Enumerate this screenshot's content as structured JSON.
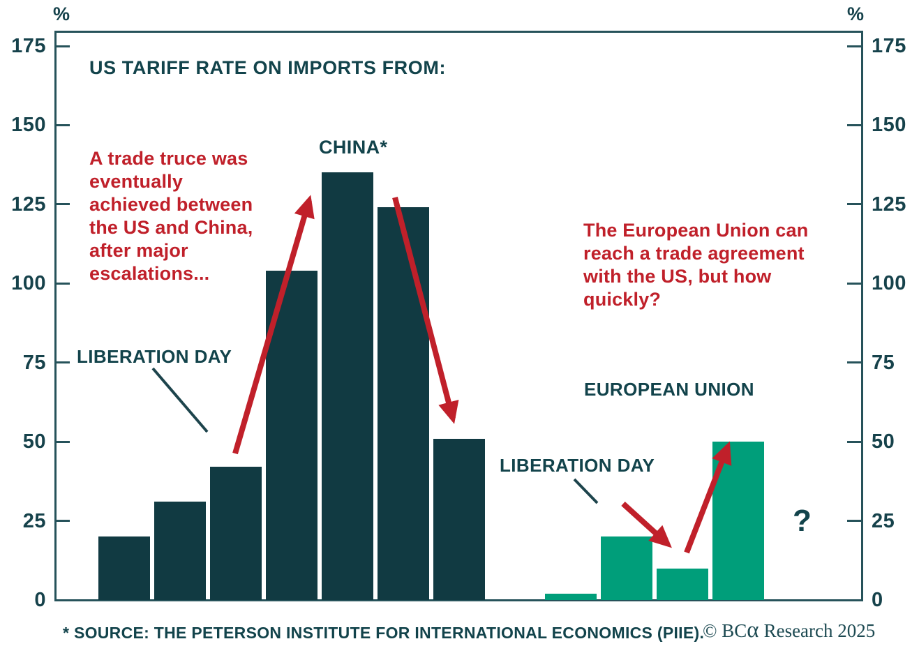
{
  "title": "US TARIFF RATE ON IMPORTS FROM:",
  "axis": {
    "unit_left": "%",
    "unit_right": "%"
  },
  "chart_data": {
    "type": "bar",
    "title": "US TARIFF RATE ON IMPORTS FROM:",
    "xlabel": "",
    "ylabel": "%",
    "ylim": [
      0,
      175
    ],
    "yticks": [
      0,
      25,
      50,
      75,
      100,
      125,
      150,
      175
    ],
    "grid": false,
    "legend_position": "none",
    "groups": [
      {
        "name": "CHINA*",
        "color": "#113a42",
        "values": [
          20,
          31,
          42,
          104,
          135,
          124,
          51
        ]
      },
      {
        "name": "EUROPEAN UNION",
        "color": "#009e7a",
        "values": [
          2,
          20,
          10,
          50
        ]
      }
    ]
  },
  "labels": {
    "china": "CHINA*",
    "european_union": "EUROPEAN UNION",
    "liberation_day_china": "LIBERATION DAY",
    "liberation_day_eu": "LIBERATION DAY",
    "question_mark": "?"
  },
  "annotations": {
    "truce_note": "A trade truce was\neventually\nachieved between\nthe US and China,\nafter major\nescalations...",
    "eu_note": "The European Union can\nreach a trade agreement\nwith the US, but how\nquickly?"
  },
  "footer": {
    "source": "* SOURCE: THE PETERSON INSTITUTE FOR INTERNATIONAL ECONOMICS (PIIE).",
    "copyright_prefix": "© BC",
    "copyright_alpha": "α",
    "copyright_suffix": "Research 2025"
  },
  "colors": {
    "bar_dark": "#113a42",
    "bar_green": "#009e7a",
    "red": "#c0202a",
    "axis": "#26525a",
    "text_dark": "#12434b"
  }
}
